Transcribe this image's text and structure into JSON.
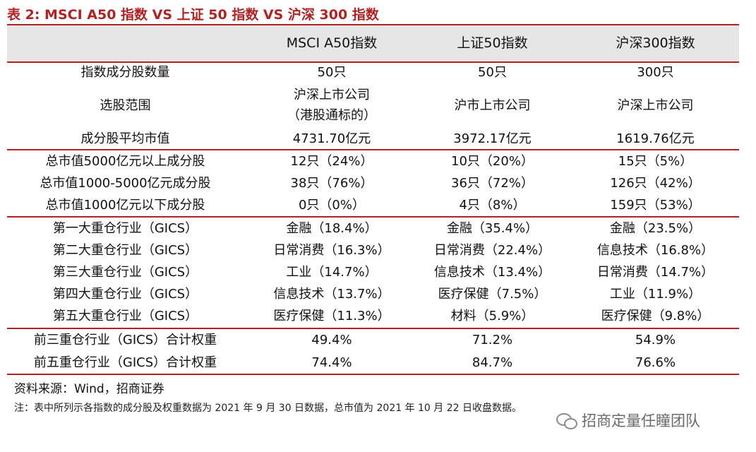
{
  "title": "表 2:  MSCI A50 指数 VS 上证 50 指数 VS 沪深 300 指数",
  "header": {
    "label": "",
    "col1": "MSCI A50指数",
    "col2": "上证50指数",
    "col3": "沪深300指数"
  },
  "rows": [
    {
      "label": "指数成分股数量",
      "c1": "50只",
      "c2": "50只",
      "c3": "300只"
    },
    {
      "label": "选股范围",
      "c1_line1": "沪深上市公司",
      "c1_line2": "（港股通标的）",
      "c2": "沪市上市公司",
      "c3": "沪深上市公司"
    },
    {
      "label": "成分股平均市值",
      "c1": "4731.70亿元",
      "c2": "3972.17亿元",
      "c3": "1619.76亿元"
    },
    {
      "label": "总市值5000亿元以上成分股",
      "c1": "12只（24%）",
      "c2": "10只（20%）",
      "c3": "15只（5%）"
    },
    {
      "label": "总市值1000-5000亿元成分股",
      "c1": "38只（76%）",
      "c2": "36只（72%）",
      "c3": "126只（42%）"
    },
    {
      "label": "总市值1000亿元以下成分股",
      "c1": "0只（0%）",
      "c2": "4只（8%）",
      "c3": "159只（53%）"
    },
    {
      "label": "第一大重仓行业（GICS）",
      "c1": "金融（18.4%）",
      "c2": "金融（35.4%）",
      "c3": "金融（23.5%）"
    },
    {
      "label": "第二大重仓行业（GICS）",
      "c1": "日常消费（16.3%）",
      "c2": "日常消费（22.4%）",
      "c3": "信息技术（16.8%）"
    },
    {
      "label": "第三大重仓行业（GICS）",
      "c1": "工业（14.7%）",
      "c2": "信息技术（13.4%）",
      "c3": "日常消费（14.7%）"
    },
    {
      "label": "第四大重仓行业（GICS）",
      "c1": "信息技术（13.7%）",
      "c2": "医疗保健（7.5%）",
      "c3": "工业（11.9%）"
    },
    {
      "label": "第五大重仓行业（GICS）",
      "c1": "医疗保健（11.3%）",
      "c2": "材料（5.9%）",
      "c3": "医疗保健（9.8%）"
    },
    {
      "label": "前三重仓行业（GICS）合计权重",
      "c1": "49.4%",
      "c2": "71.2%",
      "c3": "54.9%"
    },
    {
      "label": "前五重仓行业（GICS）合计权重",
      "c1": "74.4%",
      "c2": "84.7%",
      "c3": "76.6%"
    }
  ],
  "source": "资料来源：Wind，招商证券",
  "note": "注：表中所列示各指数的成分股及权重数据为 2021 年 9 月 30 日数据，总市值为 2021 年 10 月 22 日收盘数据。",
  "watermark": "招商定量任瞳团队",
  "colors": {
    "accent": "#b22222",
    "header_bg": "#e6e6e6"
  }
}
